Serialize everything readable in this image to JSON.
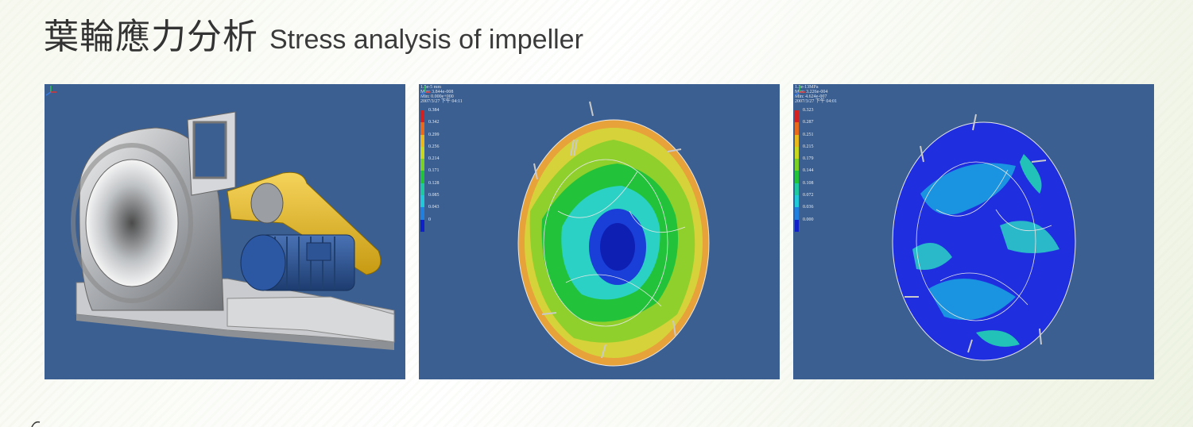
{
  "title": {
    "chinese": "葉輪應力分析",
    "english": "Stress analysis of impeller"
  },
  "displacement": {
    "info": [
      "1.5e-5 mm",
      "Max: 3.844e-008",
      "Min: 0.000e+000",
      "2007/3/27 下午 04:11"
    ],
    "legend": [
      "0.384",
      "0.342",
      "0.299",
      "0.256",
      "0.214",
      "0.171",
      "0.128",
      "0.085",
      "0.043",
      "0"
    ]
  },
  "stress": {
    "info": [
      "1.3e-13MPa",
      "Max: 3.226e-004",
      "Min: 4.624e-007",
      "2007/3/27 下午 04:01"
    ],
    "legend": [
      "0.323",
      "0.287",
      "0.251",
      "0.215",
      "0.179",
      "0.144",
      "0.108",
      "0.072",
      "0.036",
      "0.000"
    ]
  },
  "colors": {
    "panel_background": "#3b5f91",
    "contour_max": "#d42020",
    "contour_min": "#1020c8"
  }
}
